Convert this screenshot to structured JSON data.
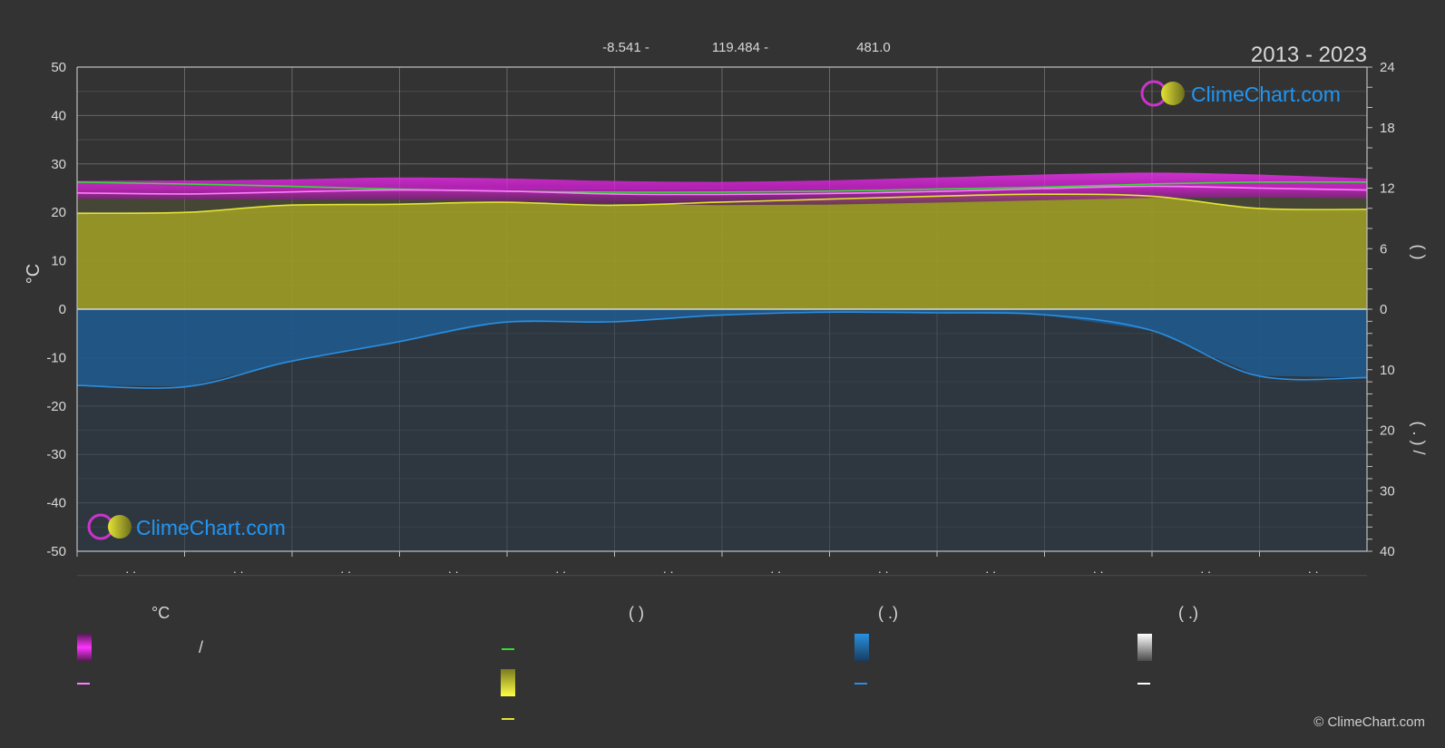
{
  "header": {
    "coords": [
      "-8.541 -",
      "119.484 -",
      "481.0"
    ],
    "period": "2013 - 2023"
  },
  "watermark": "ClimeChart.com",
  "copyright": "© ClimeChart.com",
  "colors": {
    "background": "#333333",
    "temp_band": "#d619d6",
    "temp_mean": "#ff7dff",
    "daylight": "#33dd33",
    "sunshine_fill": "#9a9a26",
    "sunshine_line": "#e3e335",
    "precip_fill": "#1f5a91",
    "precip_line": "#2a8fe0",
    "snow": "#ffffff",
    "logo_blue": "#2196f3"
  },
  "legend": {
    "headers": [
      "°C",
      "(          )",
      "(   .)",
      "(   .)"
    ],
    "slash": "/",
    "items": [
      {
        "icon": "temperature-range-swatch",
        "col": 0,
        "row": 0
      },
      {
        "icon": "temperature-mean-line",
        "col": 0,
        "row": 1
      },
      {
        "icon": "daylight-line",
        "col": 1,
        "row": 0
      },
      {
        "icon": "sunshine-swatch",
        "col": 1,
        "row": 1
      },
      {
        "icon": "sunshine-line",
        "col": 1,
        "row": 2
      },
      {
        "icon": "precipitation-swatch",
        "col": 2,
        "row": 0
      },
      {
        "icon": "precipitation-line",
        "col": 2,
        "row": 1
      },
      {
        "icon": "snow-swatch",
        "col": 3,
        "row": 0
      },
      {
        "icon": "snow-line",
        "col": 3,
        "row": 1
      }
    ]
  },
  "chart_data": {
    "type": "area",
    "title": "",
    "x_tick_labels": [
      ". .",
      ". .",
      ". .",
      ". .",
      ". .",
      ". .",
      ". .",
      ". .",
      ". .",
      ". .",
      ". .",
      ". ."
    ],
    "x_range_days": [
      0,
      365
    ],
    "y_left": {
      "label": "°C",
      "range": [
        -50,
        50
      ],
      "ticks": [
        50,
        40,
        30,
        20,
        10,
        0,
        -10,
        -20,
        -30,
        -40,
        -50
      ]
    },
    "y_right_top": {
      "label": "(    )",
      "range": [
        0,
        24
      ],
      "ticks": [
        24,
        18,
        12,
        6,
        0
      ]
    },
    "y_right_bottom": {
      "label": "(  .  )  /",
      "range": [
        0,
        40
      ],
      "ticks": [
        0,
        10,
        20,
        30,
        40
      ]
    },
    "grid": true,
    "series": [
      {
        "key": "temp_max",
        "x": [
          0,
          31,
          59,
          90,
          120,
          151,
          181,
          212,
          243,
          273,
          304,
          334,
          365
        ],
        "y": [
          26.5,
          26.6,
          26.8,
          27.2,
          27.0,
          26.5,
          26.3,
          26.6,
          27.2,
          27.8,
          28.2,
          27.8,
          27.0
        ]
      },
      {
        "key": "temp_min",
        "x": [
          0,
          31,
          59,
          90,
          120,
          151,
          181,
          212,
          243,
          273,
          304,
          334,
          365
        ],
        "y": [
          22.8,
          22.7,
          22.6,
          22.6,
          22.3,
          21.8,
          21.5,
          21.6,
          22.0,
          22.5,
          23.0,
          23.1,
          22.9
        ]
      },
      {
        "key": "temp_mean",
        "x": [
          0,
          31,
          59,
          90,
          120,
          151,
          181,
          212,
          243,
          273,
          304,
          334,
          365
        ],
        "y": [
          24.0,
          23.8,
          24.2,
          24.6,
          24.4,
          23.8,
          23.7,
          23.9,
          24.3,
          24.9,
          25.4,
          25.0,
          24.6
        ]
      },
      {
        "key": "daylight_hours",
        "x": [
          0,
          31,
          59,
          90,
          120,
          151,
          181,
          212,
          243,
          273,
          304,
          334,
          365
        ],
        "y": [
          12.6,
          12.4,
          12.2,
          11.9,
          11.7,
          11.6,
          11.6,
          11.7,
          11.9,
          12.1,
          12.4,
          12.6,
          12.6
        ]
      },
      {
        "key": "sunshine_hours",
        "x": [
          0,
          31,
          59,
          90,
          120,
          151,
          181,
          212,
          243,
          273,
          304,
          334,
          365
        ],
        "y": [
          9.5,
          9.6,
          10.3,
          10.4,
          10.6,
          10.3,
          10.6,
          10.9,
          11.2,
          11.4,
          11.2,
          10.0,
          9.9
        ]
      },
      {
        "key": "precipitation_mm",
        "x": [
          0,
          31,
          59,
          90,
          120,
          151,
          181,
          212,
          243,
          273,
          304,
          334,
          365
        ],
        "y": [
          12.6,
          12.8,
          8.8,
          5.5,
          2.2,
          2.1,
          1.0,
          0.5,
          0.6,
          0.9,
          3.5,
          11.0,
          11.3
        ]
      }
    ]
  }
}
